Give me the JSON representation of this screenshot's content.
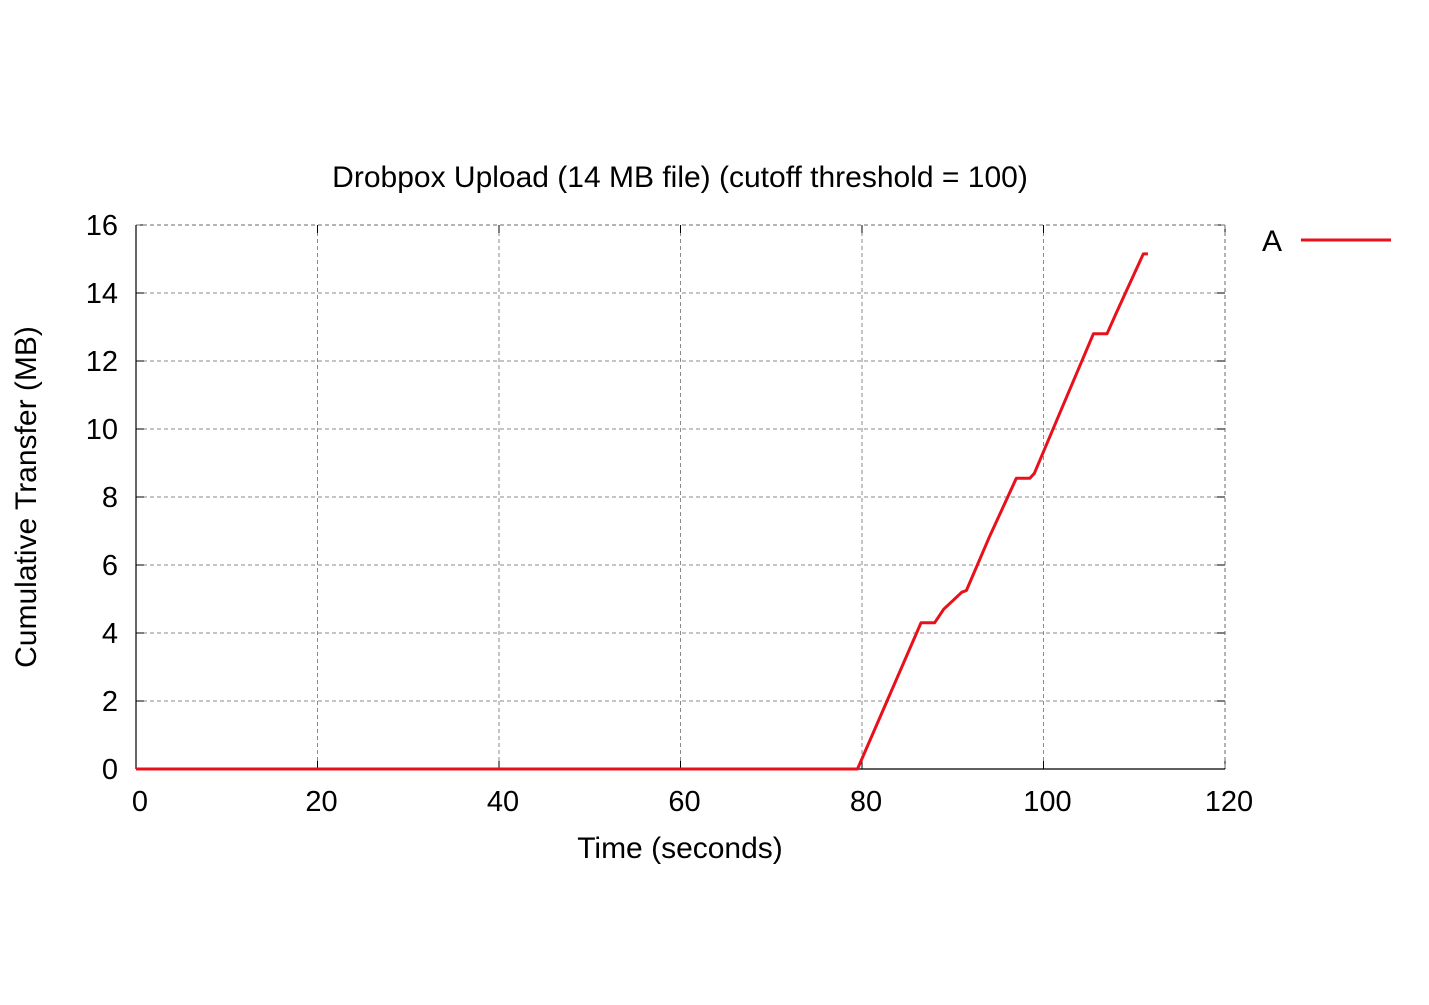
{
  "chart_data": {
    "type": "line",
    "title": "Drobpox Upload (14 MB file) (cutoff threshold = 100)",
    "xlabel": "Time (seconds)",
    "ylabel": "Cumulative Transfer (MB)",
    "xlim": [
      0,
      120
    ],
    "ylim": [
      0,
      16
    ],
    "xticks": [
      0,
      20,
      40,
      60,
      80,
      100,
      120
    ],
    "yticks": [
      0,
      2,
      4,
      6,
      8,
      10,
      12,
      14,
      16
    ],
    "xtick_labels": [
      "0",
      "20",
      "40",
      "60",
      "80",
      "100",
      "120"
    ],
    "ytick_labels": [
      "0",
      "2",
      "4",
      "6",
      "8",
      "10",
      "12",
      "14",
      "16"
    ],
    "grid": true,
    "grid_style": "dashed",
    "legend_position": "outside-top-right",
    "series": [
      {
        "name": "A",
        "color": "#e8101a",
        "x": [
          0,
          79.5,
          86.5,
          88.0,
          89.0,
          90.0,
          91.0,
          91.5,
          94.0,
          97.0,
          98.5,
          99.0,
          102.0,
          105.5,
          107.0,
          108.0,
          111.0,
          111.5
        ],
        "y": [
          0,
          0,
          4.3,
          4.3,
          4.7,
          4.95,
          5.2,
          5.25,
          6.8,
          8.55,
          8.55,
          8.7,
          10.6,
          12.8,
          12.8,
          13.4,
          15.15,
          15.15
        ]
      }
    ]
  }
}
